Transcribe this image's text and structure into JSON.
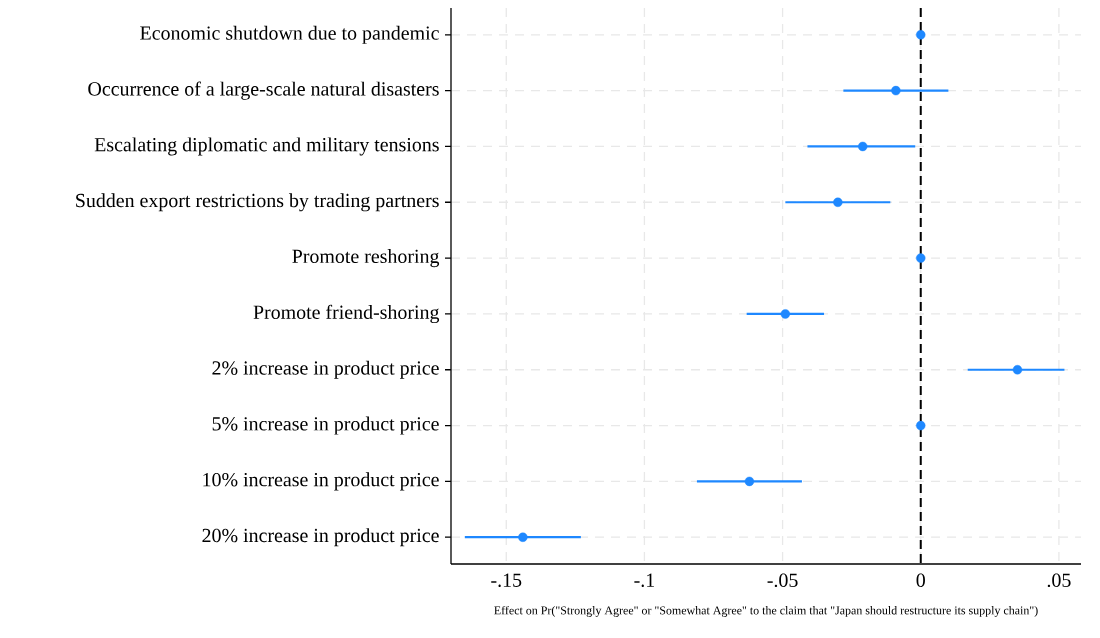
{
  "chart_data": {
    "type": "scatter",
    "orientation": "horizontal",
    "categories": [
      "Economic shutdown due to pandemic",
      "Occurrence of a large-scale natural disasters",
      "Escalating diplomatic and military tensions",
      "Sudden export restrictions by trading partners",
      "Promote reshoring",
      "Promote friend-shoring",
      "2% increase in product price",
      "5% increase in product price",
      "10% increase in product price",
      "20% increase in product price"
    ],
    "values": [
      0,
      -0.009,
      -0.021,
      -0.03,
      0,
      -0.049,
      0.035,
      0,
      -0.062,
      -0.144
    ],
    "errors": [
      null,
      [
        -0.028,
        0.01
      ],
      [
        -0.041,
        -0.002
      ],
      [
        -0.049,
        -0.011
      ],
      null,
      [
        -0.063,
        -0.035
      ],
      [
        0.017,
        0.052
      ],
      null,
      [
        -0.081,
        -0.043
      ],
      [
        -0.165,
        -0.123
      ]
    ],
    "color": "#1e88ff",
    "marker": "circle",
    "xlim": [
      -0.17,
      0.058
    ],
    "xticks": [
      {
        "value": -0.15,
        "label": "-.15"
      },
      {
        "value": -0.1,
        "label": "-.1"
      },
      {
        "value": -0.05,
        "label": "-.05"
      },
      0,
      {
        "value": 0.05,
        "label": ".05"
      }
    ],
    "ref_lines": [
      {
        "axis": "x",
        "value": 0,
        "color": "#000000",
        "line_style": "dashed"
      }
    ],
    "grid": true,
    "xlabel": "Effect on Pr(\"Strongly Agree\" or \"Somewhat Agree\" to the claim that \"Japan should restructure its supply chain\")"
  }
}
